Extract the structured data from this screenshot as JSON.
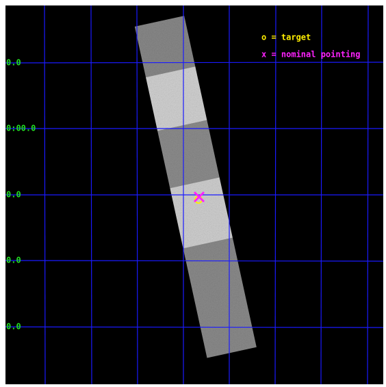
{
  "axis_labels": [
    "0.0",
    "0:00.0",
    "0.0",
    "0.0",
    "0.0"
  ],
  "legend": [
    "o = target",
    "x = nominal pointing"
  ]
}
